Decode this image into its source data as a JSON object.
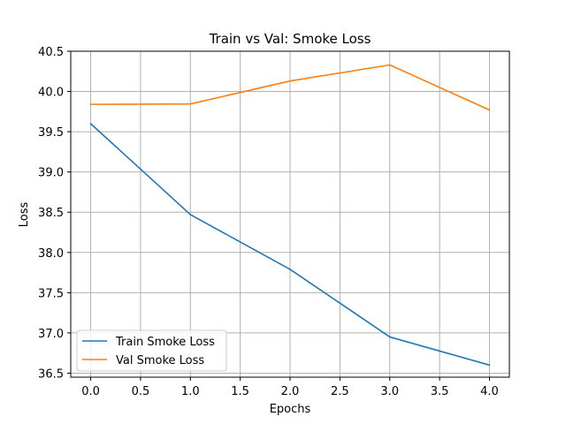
{
  "chart_data": {
    "type": "line",
    "title": "Train vs Val: Smoke Loss",
    "xlabel": "Epochs",
    "ylabel": "Loss",
    "xlim": [
      -0.2,
      4.2
    ],
    "ylim": [
      36.45,
      40.5
    ],
    "xticks": [
      0.0,
      0.5,
      1.0,
      1.5,
      2.0,
      2.5,
      3.0,
      3.5,
      4.0
    ],
    "xtick_labels": [
      "0.0",
      "0.5",
      "1.0",
      "1.5",
      "2.0",
      "2.5",
      "3.0",
      "3.5",
      "4.0"
    ],
    "yticks": [
      36.5,
      37.0,
      37.5,
      38.0,
      38.5,
      39.0,
      39.5,
      40.0,
      40.5
    ],
    "ytick_labels": [
      "36.5",
      "37.0",
      "37.5",
      "38.0",
      "38.5",
      "39.0",
      "39.5",
      "40.0",
      "40.5"
    ],
    "grid": true,
    "legend_position": "lower-left",
    "x": [
      0,
      1,
      2,
      3,
      4
    ],
    "series": [
      {
        "name": "Train Smoke Loss",
        "color": "#1f77b4",
        "values": [
          39.6,
          38.47,
          37.79,
          36.95,
          36.6
        ]
      },
      {
        "name": "Val Smoke Loss",
        "color": "#ff7f0e",
        "values": [
          39.84,
          39.845,
          40.13,
          40.33,
          39.77
        ]
      }
    ]
  }
}
